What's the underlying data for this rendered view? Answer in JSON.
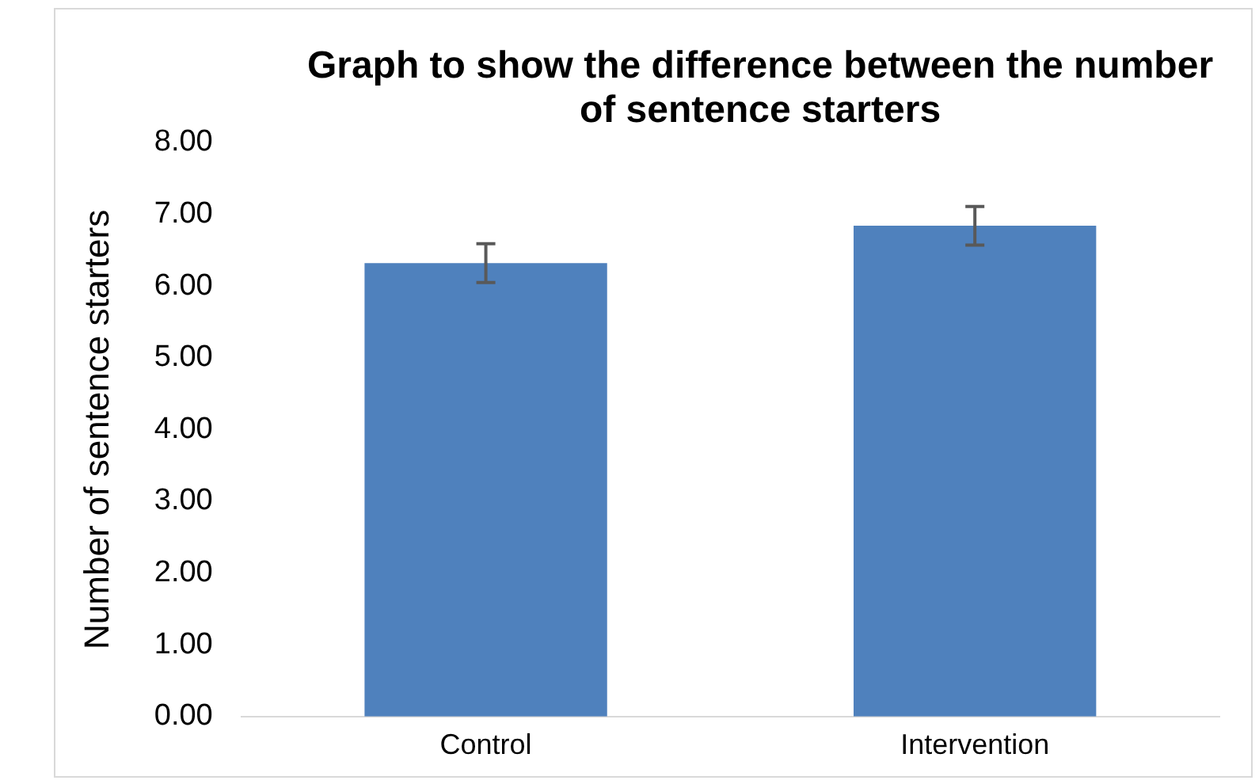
{
  "chart_data": {
    "type": "bar",
    "title": "Graph to show the difference between the number of sentence starters",
    "ylabel": "Number of sentence starters",
    "categories": [
      "Control",
      "Intervention"
    ],
    "values": [
      6.32,
      6.84
    ],
    "errors": [
      0.27,
      0.27
    ],
    "color": "#4f81bd",
    "ylim": [
      0,
      8
    ],
    "yticks": [
      {
        "value": 0,
        "label": "0.00"
      },
      {
        "value": 1,
        "label": "1.00"
      },
      {
        "value": 2,
        "label": "2.00"
      },
      {
        "value": 3,
        "label": "3.00"
      },
      {
        "value": 4,
        "label": "4.00"
      },
      {
        "value": 5,
        "label": "5.00"
      },
      {
        "value": 6,
        "label": "6.00"
      },
      {
        "value": 7,
        "label": "7.00"
      },
      {
        "value": 8,
        "label": "8.00"
      }
    ],
    "grid": false,
    "legend": false
  }
}
